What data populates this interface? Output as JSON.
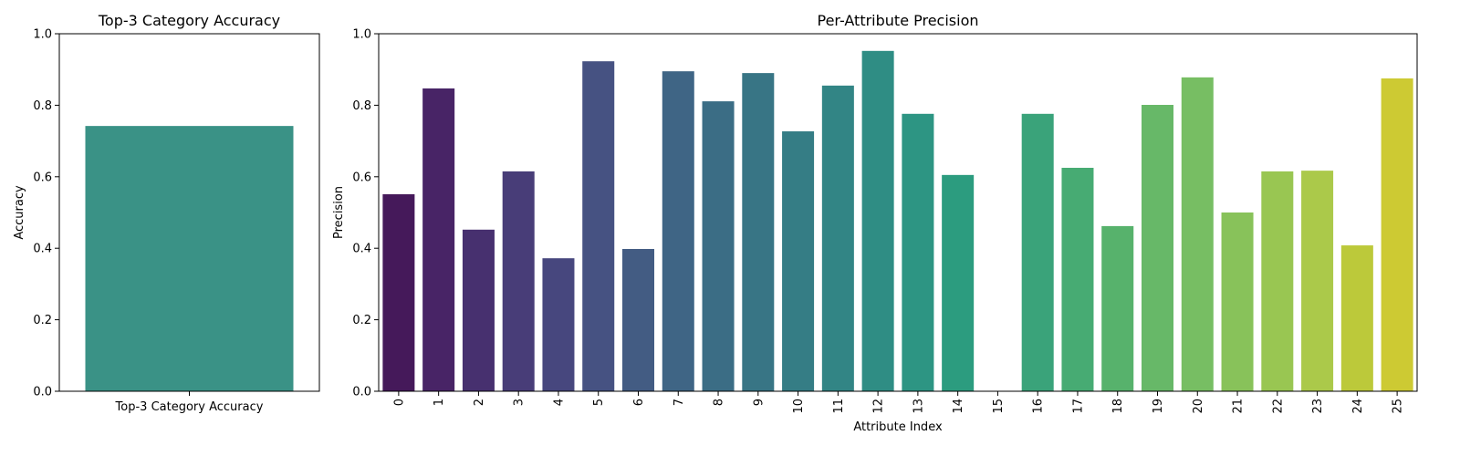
{
  "chart_data": [
    {
      "type": "bar",
      "title": "Top-3 Category Accuracy",
      "ylabel": "Accuracy",
      "categories": [
        "Top-3 Category Accuracy"
      ],
      "values": [
        0.742
      ],
      "color": "#3a9286",
      "ylim": [
        0,
        1
      ],
      "yticks": [
        {
          "value": 0,
          "label": "0.0"
        },
        0.2,
        0.4,
        0.6,
        0.8,
        {
          "value": 1,
          "label": "1.0"
        }
      ]
    },
    {
      "type": "bar",
      "title": "Per-Attribute Precision",
      "xlabel": "Attribute Index",
      "ylabel": "Precision",
      "categories": [
        "0",
        "1",
        "2",
        "3",
        "4",
        "5",
        "6",
        "7",
        "8",
        "9",
        "10",
        "11",
        "12",
        "13",
        "14",
        "15",
        "16",
        "17",
        "18",
        "19",
        "20",
        "21",
        "22",
        "23",
        "24",
        "25"
      ],
      "values": [
        0.551,
        0.847,
        0.452,
        0.615,
        0.372,
        0.923,
        0.398,
        0.895,
        0.811,
        0.89,
        0.727,
        0.855,
        0.952,
        0.776,
        0.605,
        0,
        0.776,
        0.625,
        0.462,
        0.801,
        0.878,
        0.5,
        0.615,
        0.617,
        0.408,
        0.875
      ],
      "colors": [
        "#45195a",
        "#482466",
        "#47306f",
        "#483d78",
        "#47477e",
        "#465282",
        "#435c83",
        "#3f6585",
        "#3b6d85",
        "#387585",
        "#357d85",
        "#328585",
        "#2f8d84",
        "#2d9583",
        "#2c9c7f",
        "#34a47b",
        "#3aa37a",
        "#47ab73",
        "#57b26c",
        "#67b868",
        "#77be63",
        "#88c25a",
        "#99c652",
        "#abc94a",
        "#bcc93a",
        "#cdca33"
      ],
      "ylim": [
        0,
        1
      ],
      "yticks": [
        {
          "value": 0,
          "label": "0.0"
        },
        0.2,
        0.4,
        0.6,
        0.8,
        {
          "value": 1,
          "label": "1.0"
        }
      ]
    }
  ]
}
